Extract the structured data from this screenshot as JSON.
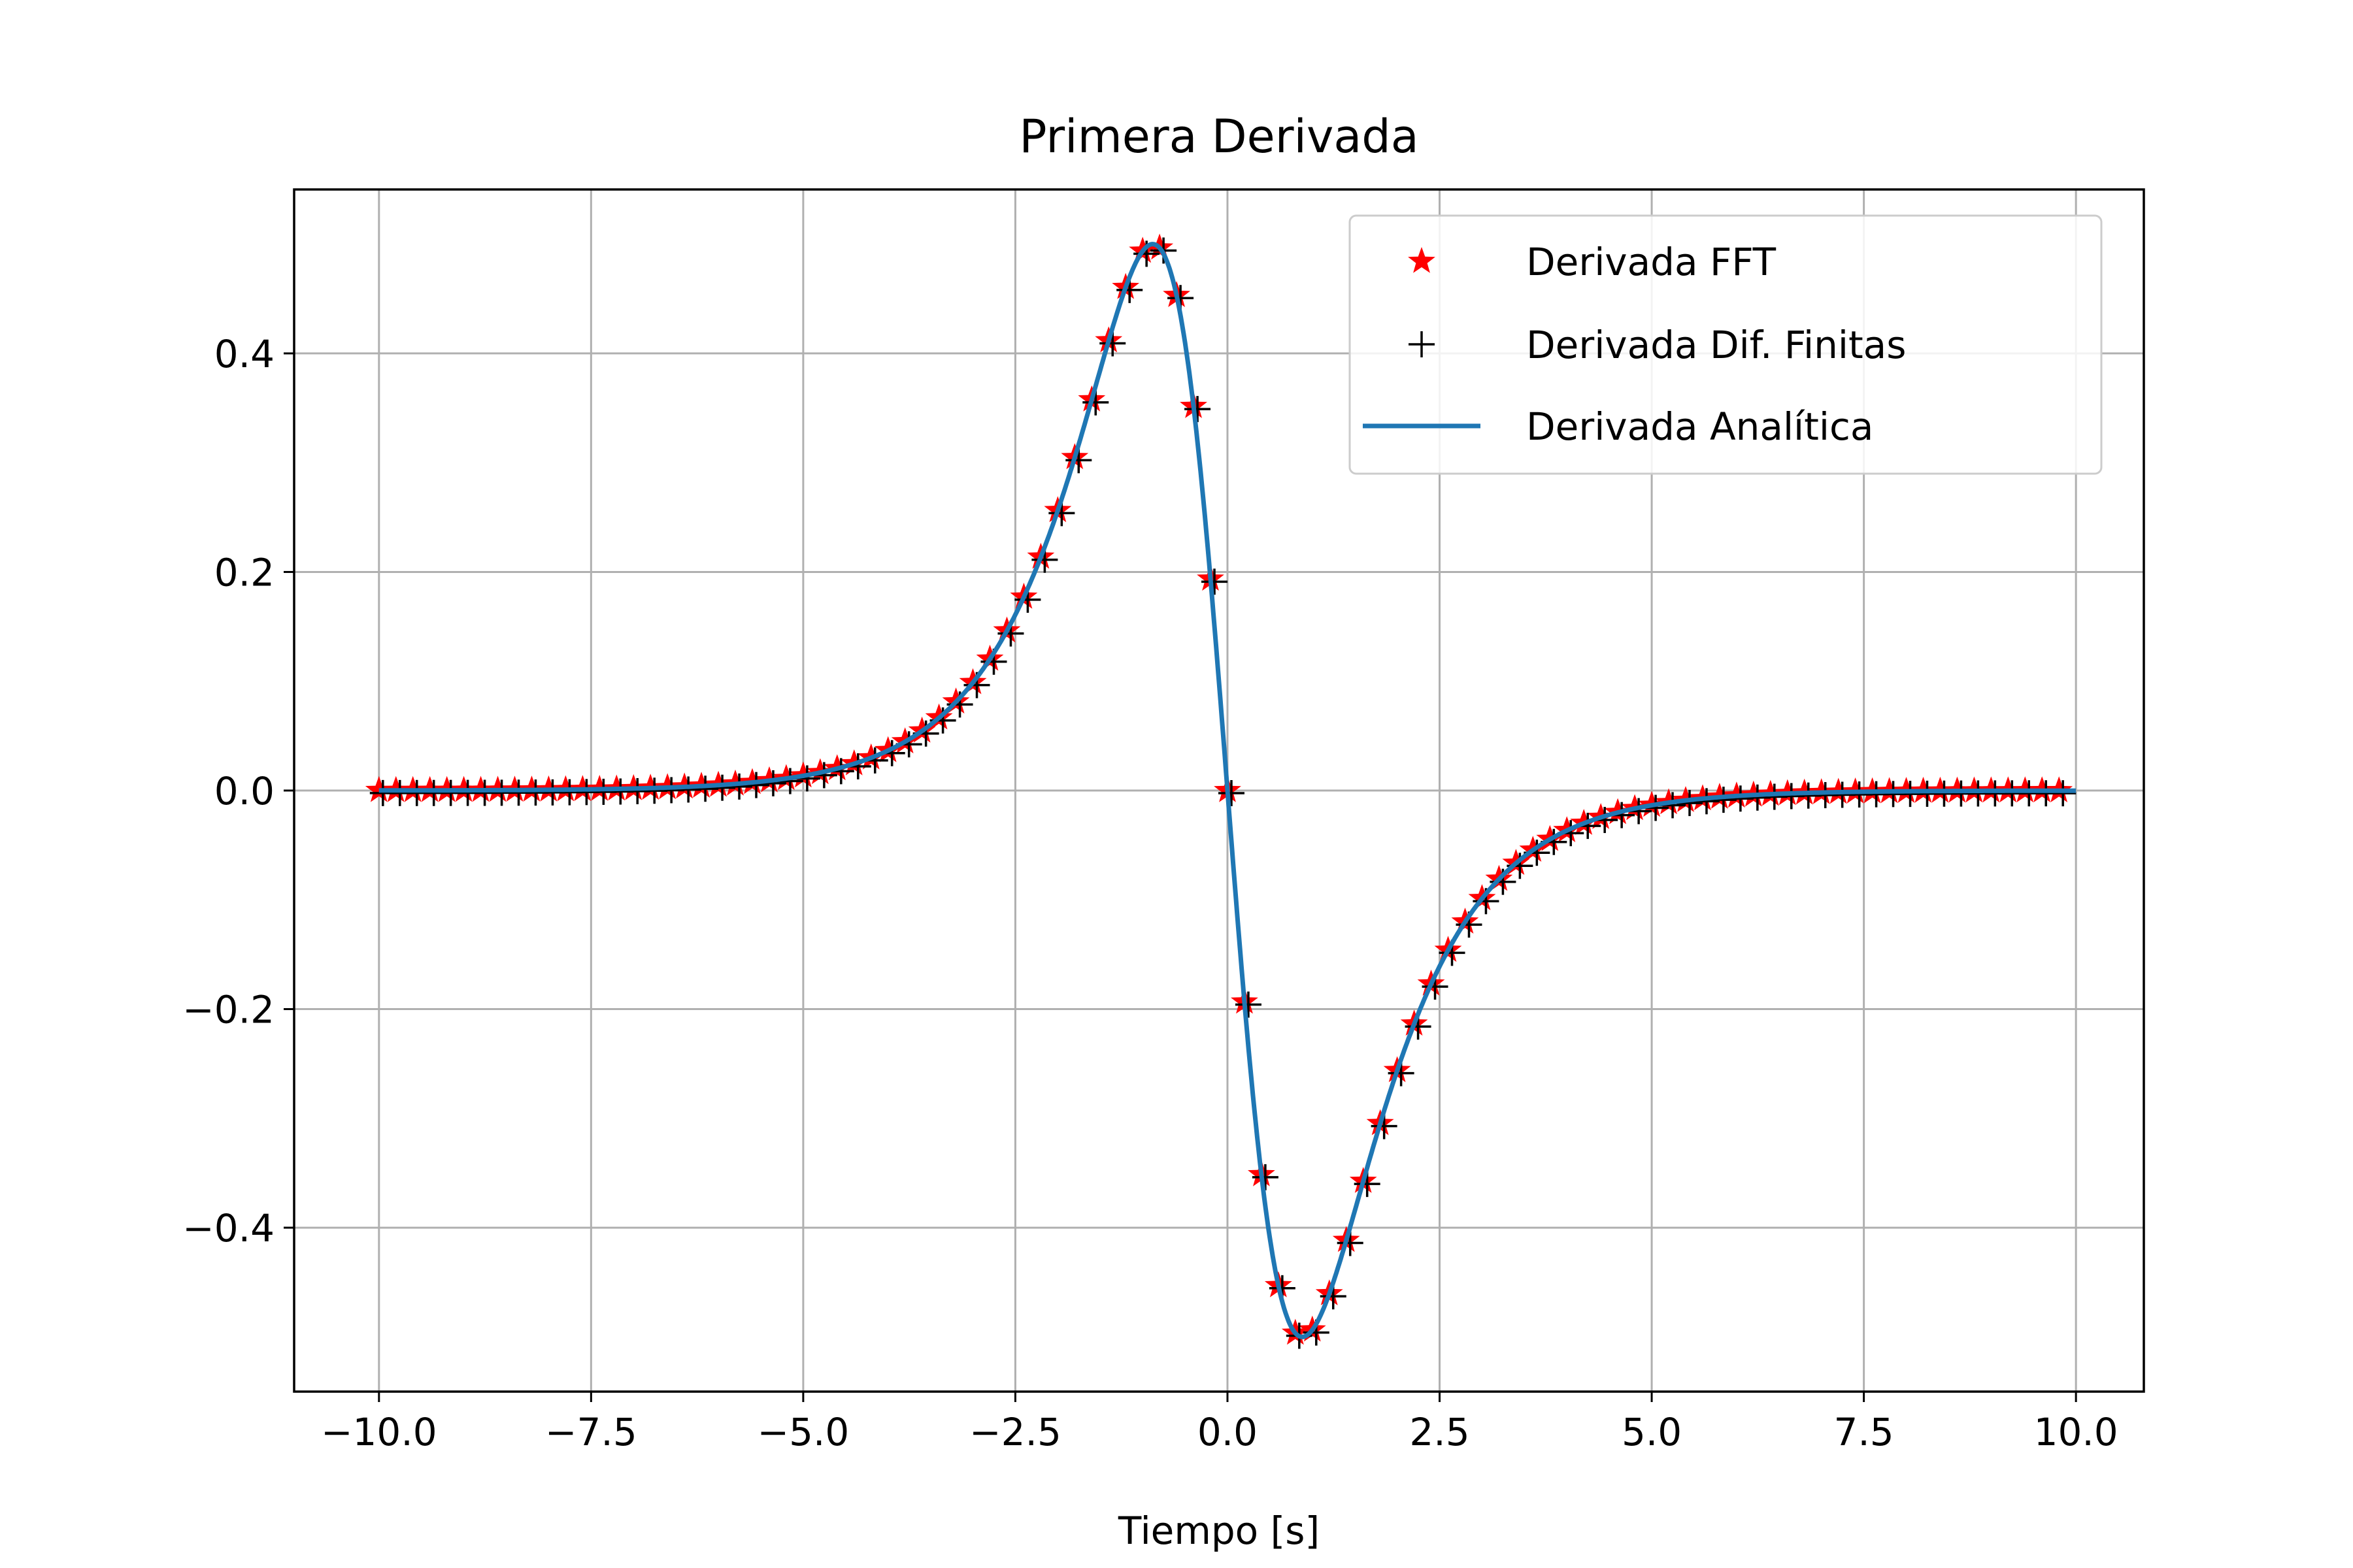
{
  "chart_data": {
    "type": "line",
    "title": "Primera Derivada",
    "xlabel": "Tiempo [s]",
    "ylabel": "",
    "xlim": [
      -11.0,
      10.8
    ],
    "ylim": [
      -0.55,
      0.55
    ],
    "xticks": [
      -10.0,
      -7.5,
      -5.0,
      -2.5,
      0.0,
      2.5,
      5.0,
      7.5,
      10.0
    ],
    "xtick_labels": [
      "−10.0",
      "−7.5",
      "−5.0",
      "−2.5",
      "0.0",
      "2.5",
      "5.0",
      "7.5",
      "10.0"
    ],
    "yticks": [
      -0.4,
      -0.2,
      0.0,
      0.2,
      0.4
    ],
    "ytick_labels": [
      "−0.4",
      "−0.2",
      "0.0",
      "0.2",
      "0.4"
    ],
    "grid": true,
    "legend_position": "top-right",
    "series": [
      {
        "name": "Derivada FFT",
        "style": "marker",
        "marker": "star",
        "color": "#ff0000",
        "x_start": -10.0,
        "x_step": 0.2,
        "count": 100,
        "function": "-sech(x)*tanh(x)",
        "x": [
          -10.0,
          -1.0,
          -0.6,
          -0.2,
          0.0,
          0.2,
          0.6,
          1.0,
          9.8
        ],
        "y": [
          0.0001,
          0.4998,
          0.4623,
          0.1936,
          0.0,
          -0.1936,
          -0.4623,
          -0.4998,
          -0.0001
        ]
      },
      {
        "name": "Derivada Dif. Finitas",
        "style": "marker",
        "marker": "plus",
        "color": "#000000",
        "x_start": -10.0,
        "x_step": 0.2,
        "count": 100,
        "function": "-sech(x)*tanh(x)",
        "x": [
          -10.0,
          -1.0,
          -0.6,
          -0.2,
          0.0,
          0.2,
          0.6,
          1.0,
          9.8
        ],
        "y": [
          0.0001,
          0.4998,
          0.4623,
          0.1936,
          0.0,
          -0.1936,
          -0.4623,
          -0.4998,
          -0.0001
        ]
      },
      {
        "name": "Derivada Analítica",
        "style": "line",
        "color": "#1f77b4",
        "x_range": [
          -10.0,
          10.0
        ],
        "function": "-sech(x)*tanh(x)",
        "x": [
          -10.0,
          -0.8814,
          0.0,
          0.8814,
          10.0
        ],
        "y": [
          0.0001,
          0.5,
          0.0,
          -0.5,
          -0.0001
        ]
      }
    ]
  }
}
